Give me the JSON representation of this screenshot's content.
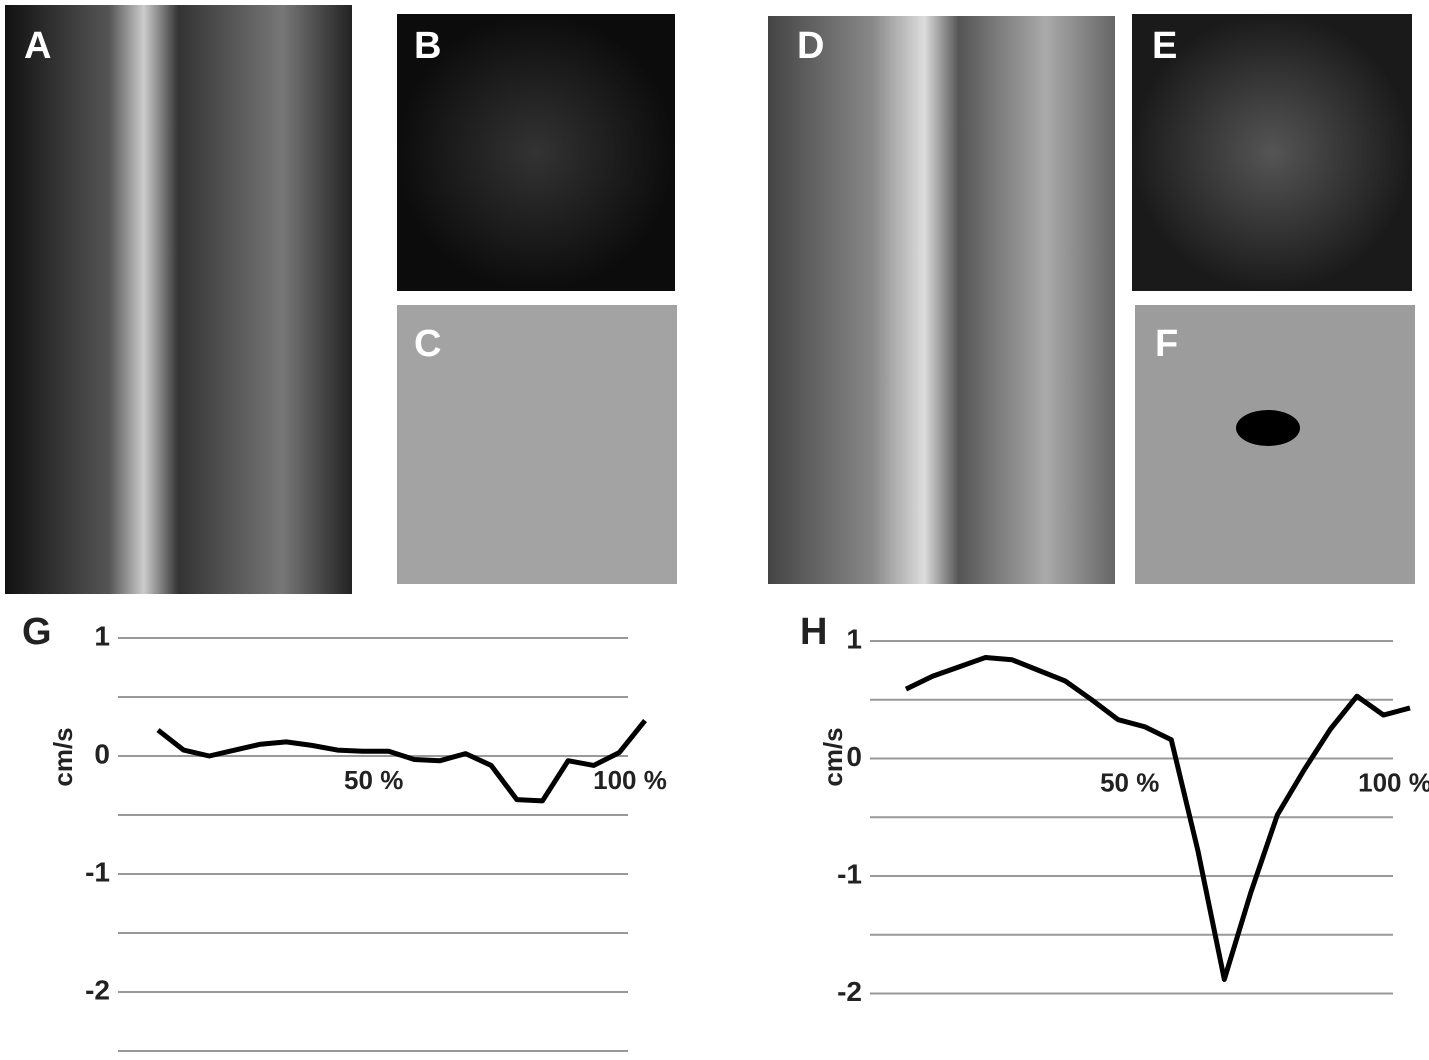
{
  "panels": [
    {
      "label": "A"
    },
    {
      "label": "B"
    },
    {
      "label": "C"
    },
    {
      "label": "D"
    },
    {
      "label": "E"
    },
    {
      "label": "F"
    }
  ],
  "chart_data": [
    {
      "type": "line",
      "title": "G",
      "ylabel": "cm/s",
      "x": [
        5,
        10,
        15,
        20,
        25,
        30,
        35,
        40,
        45,
        50,
        55,
        60,
        65,
        70,
        75,
        80,
        85,
        90,
        95,
        100
      ],
      "series": [
        {
          "color": "#000000",
          "values": [
            0.22,
            0.05,
            0,
            0.05,
            0.1,
            0.12,
            0.09,
            0.05,
            0.04,
            0.04,
            -0.03,
            -0.04,
            0.02,
            -0.08,
            -0.37,
            -0.38,
            -0.04,
            -0.08,
            0.03,
            0.3
          ]
        }
      ],
      "xlim": [
        5,
        100
      ],
      "xticks": [
        {
          "value": 50,
          "label": "50 %"
        },
        {
          "value": 100,
          "label": "100 %"
        }
      ],
      "ylim": [
        -2.5,
        1
      ],
      "yticks": [
        1,
        0,
        -1,
        -2
      ],
      "minor_yticks": [
        0.5,
        -0.5,
        -1.5,
        -2.5
      ],
      "grid": true
    },
    {
      "type": "line",
      "title": "H",
      "ylabel": "cm/s",
      "x": [
        5,
        10,
        15,
        20,
        25,
        30,
        35,
        40,
        45,
        50,
        55,
        60,
        65,
        70,
        75,
        80,
        85,
        90,
        95,
        100
      ],
      "series": [
        {
          "color": "#000000",
          "values": [
            0.59,
            0.7,
            0.78,
            0.86,
            0.84,
            0.75,
            0.66,
            0.5,
            0.33,
            0.27,
            0.16,
            -0.78,
            -1.88,
            -1.14,
            -0.48,
            -0.1,
            0.25,
            0.53,
            0.37,
            0.43
          ]
        }
      ],
      "xlim": [
        5,
        100
      ],
      "xticks": [
        {
          "value": 50,
          "label": "50 %"
        },
        {
          "value": 100,
          "label": "100 %"
        }
      ],
      "ylim": [
        -2,
        1
      ],
      "yticks": [
        1,
        0,
        -1,
        -2
      ],
      "minor_yticks": [
        0.5,
        -0.5,
        -1.5
      ],
      "grid": true
    }
  ]
}
